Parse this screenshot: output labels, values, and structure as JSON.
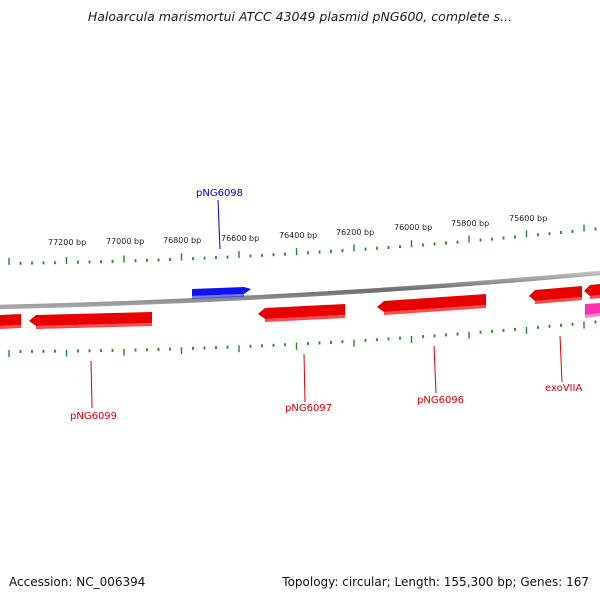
{
  "header": {
    "title": "Haloarcula marismortui ATCC 43049 plasmid pNG600, complete s..."
  },
  "footer": {
    "accession": "Accession: NC_006394",
    "summary": "Topology: circular; Length: 155,300 bp; Genes: 167"
  },
  "map": {
    "position_labels": [
      "77200 bp",
      "77000 bp",
      "76800 bp",
      "76600 bp",
      "76400 bp",
      "76200 bp",
      "76000 bp",
      "75800 bp",
      "75600 bp"
    ],
    "gene_labels": [
      {
        "name": "pNG6098",
        "color": "#0000cc"
      },
      {
        "name": "pNG6099",
        "color": "#dd0000"
      },
      {
        "name": "pNG6097",
        "color": "#dd0000"
      },
      {
        "name": "pNG6096",
        "color": "#dd0000"
      },
      {
        "name": "exoVIIA",
        "color": "#dd0000"
      }
    ],
    "colors": {
      "forward_gene": "#0000ee",
      "reverse_gene": "#ee0000",
      "rna_gene": "#ff33aa",
      "backbone": "#888888",
      "ticks": "#228822"
    }
  }
}
